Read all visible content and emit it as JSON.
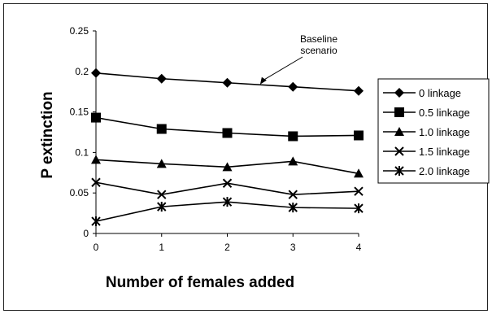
{
  "chart_data": {
    "type": "line",
    "xlabel": "Number of females added",
    "ylabel": "P extinction",
    "x": [
      0,
      1,
      2,
      3,
      4
    ],
    "xlim": [
      0,
      4
    ],
    "ylim": [
      0,
      0.25
    ],
    "yticks": [
      "0",
      "0.05",
      "0.1",
      "0.15",
      "0.2",
      "0.25"
    ],
    "xticks": [
      "0",
      "1",
      "2",
      "3",
      "4"
    ],
    "legend_position": "right",
    "grid": false,
    "series": [
      {
        "name": "0 linkage",
        "marker": "diamond",
        "values": [
          0.198,
          0.191,
          0.186,
          0.181,
          0.176
        ]
      },
      {
        "name": "0.5 linkage",
        "marker": "square",
        "values": [
          0.143,
          0.129,
          0.124,
          0.12,
          0.121
        ]
      },
      {
        "name": "1.0 linkage",
        "marker": "triangle",
        "values": [
          0.091,
          0.086,
          0.082,
          0.089,
          0.074
        ]
      },
      {
        "name": "1.5 linkage",
        "marker": "x",
        "values": [
          0.063,
          0.048,
          0.062,
          0.048,
          0.052
        ]
      },
      {
        "name": "2.0 linkage",
        "marker": "asterisk",
        "values": [
          0.015,
          0.033,
          0.039,
          0.032,
          0.031
        ]
      }
    ],
    "annotation": {
      "text_lines": [
        "Baseline",
        "scenario"
      ],
      "points_to": {
        "x": 2.5,
        "y": 0.184
      }
    }
  }
}
